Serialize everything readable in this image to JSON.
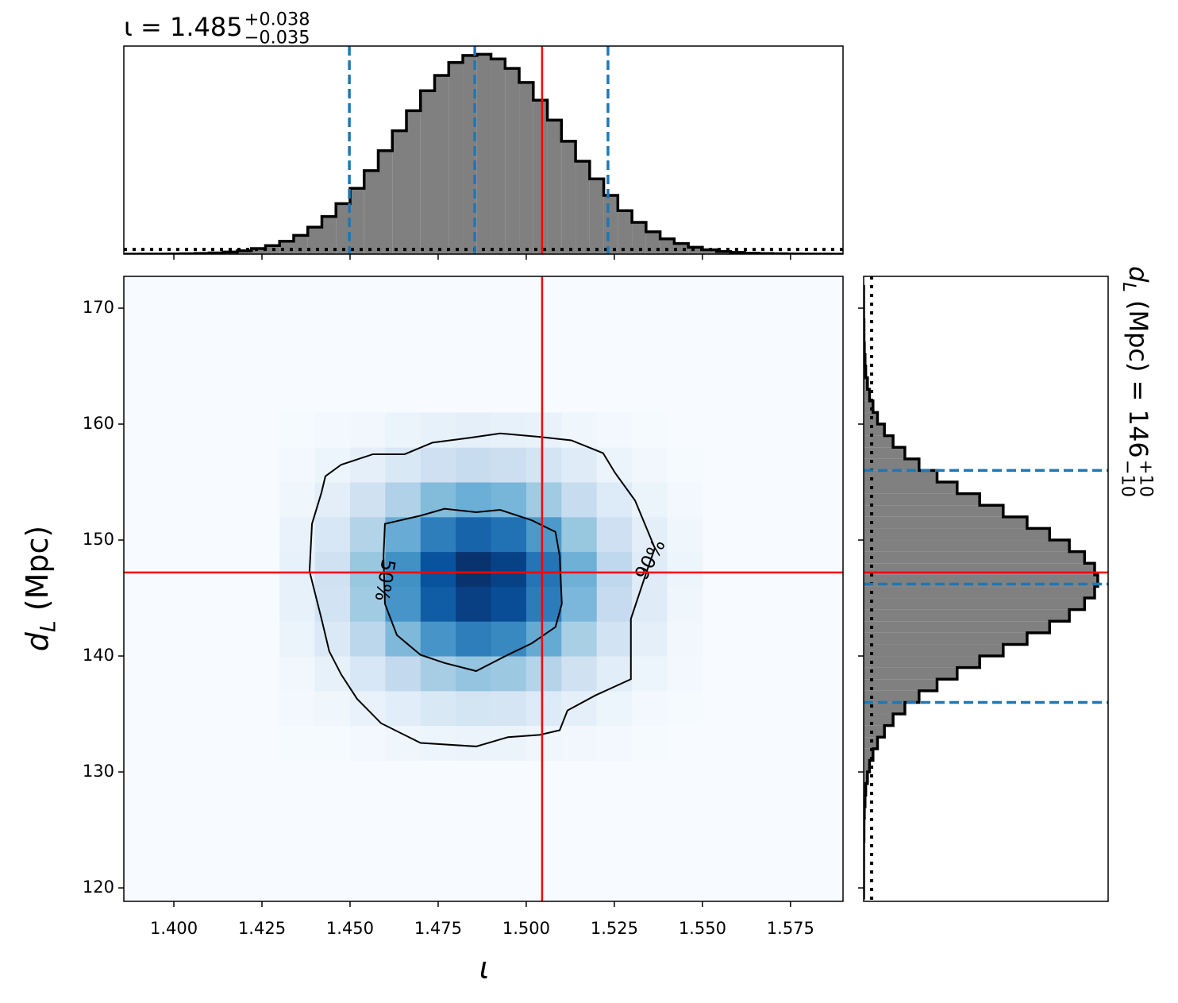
{
  "chart_data": [
    {
      "type": "histogram",
      "orientation": "vertical",
      "title": {
        "main": "ι = 1.485",
        "upper": "+0.038",
        "lower": "−0.035"
      },
      "bins": [
        1.386,
        1.39,
        1.394,
        1.398,
        1.402,
        1.406,
        1.41,
        1.414,
        1.418,
        1.422,
        1.426,
        1.43,
        1.434,
        1.438,
        1.442,
        1.446,
        1.45,
        1.454,
        1.458,
        1.462,
        1.466,
        1.47,
        1.474,
        1.478,
        1.482,
        1.486,
        1.49,
        1.494,
        1.498,
        1.502,
        1.506,
        1.51,
        1.514,
        1.518,
        1.522,
        1.526,
        1.53,
        1.534,
        1.538,
        1.542,
        1.546,
        1.55,
        1.554,
        1.558,
        1.562,
        1.566,
        1.57,
        1.574,
        1.578,
        1.582,
        1.586,
        1.59
      ],
      "values": [
        0,
        0.01,
        0.01,
        0.02,
        0.03,
        0.06,
        0.1,
        0.18,
        0.29,
        0.47,
        0.73,
        1.1,
        1.6,
        2.3,
        3.2,
        4.3,
        5.6,
        7.1,
        8.8,
        10.5,
        12.2,
        13.9,
        15.2,
        16.3,
        16.9,
        17.0,
        16.6,
        15.8,
        14.6,
        13.1,
        11.4,
        9.6,
        7.9,
        6.4,
        5.0,
        3.7,
        2.7,
        1.9,
        1.3,
        0.9,
        0.58,
        0.37,
        0.22,
        0.14,
        0.08,
        0.05,
        0.03,
        0.02,
        0.01,
        0.01,
        0
      ],
      "color": "#808080",
      "xlim": [
        1.3858,
        1.5899
      ],
      "ylim": [
        0,
        17.7
      ],
      "quantiles": [
        1.4498,
        1.4854,
        1.5232
      ],
      "quantile_color": "#1f77b4",
      "truth": 1.5045,
      "truth_color": "#ff0000",
      "prior": 0.4
    },
    {
      "type": "heatmap",
      "xlabel": "ι",
      "ylabel": {
        "main": "d",
        "sub": "L",
        "rest": " (Mpc)"
      },
      "xlim": [
        1.3858,
        1.5899
      ],
      "ylim": [
        118.84,
        172.74
      ],
      "xticks": [
        {
          "value": 1.4,
          "label": "1.400"
        },
        {
          "value": 1.425,
          "label": "1.425"
        },
        {
          "value": 1.45,
          "label": "1.450"
        },
        {
          "value": 1.475,
          "label": "1.475"
        },
        {
          "value": 1.5,
          "label": "1.500"
        },
        {
          "value": 1.525,
          "label": "1.525"
        },
        {
          "value": 1.55,
          "label": "1.550"
        },
        {
          "value": 1.575,
          "label": "1.575"
        }
      ],
      "yticks": [
        120,
        130,
        140,
        150,
        160,
        170
      ],
      "x_edges": [
        1.43,
        1.44,
        1.45,
        1.46,
        1.47,
        1.48,
        1.49,
        1.5,
        1.51,
        1.52,
        1.53,
        1.54,
        1.55
      ],
      "y_edges": [
        131,
        134,
        137,
        140,
        143,
        146,
        149,
        152,
        155,
        158,
        161
      ],
      "z": [
        [
          0.01,
          0.01,
          0.02,
          0.04,
          0.05,
          0.06,
          0.06,
          0.04,
          0.03,
          0.02,
          0.01,
          0.0
        ],
        [
          0.02,
          0.04,
          0.07,
          0.11,
          0.15,
          0.18,
          0.17,
          0.13,
          0.09,
          0.05,
          0.02,
          0.01
        ],
        [
          0.03,
          0.08,
          0.16,
          0.26,
          0.35,
          0.4,
          0.38,
          0.3,
          0.2,
          0.11,
          0.05,
          0.02
        ],
        [
          0.06,
          0.14,
          0.28,
          0.45,
          0.61,
          0.7,
          0.66,
          0.52,
          0.34,
          0.19,
          0.09,
          0.03
        ],
        [
          0.08,
          0.19,
          0.37,
          0.61,
          0.83,
          0.94,
          0.89,
          0.71,
          0.46,
          0.25,
          0.12,
          0.04
        ],
        [
          0.08,
          0.2,
          0.39,
          0.63,
          0.87,
          0.99,
          0.93,
          0.74,
          0.49,
          0.27,
          0.12,
          0.05
        ],
        [
          0.07,
          0.16,
          0.31,
          0.51,
          0.7,
          0.8,
          0.75,
          0.59,
          0.39,
          0.21,
          0.1,
          0.04
        ],
        [
          0.04,
          0.1,
          0.2,
          0.32,
          0.44,
          0.5,
          0.47,
          0.37,
          0.24,
          0.13,
          0.06,
          0.02
        ],
        [
          0.02,
          0.05,
          0.09,
          0.15,
          0.21,
          0.24,
          0.22,
          0.18,
          0.12,
          0.06,
          0.03,
          0.01
        ],
        [
          0.01,
          0.02,
          0.03,
          0.06,
          0.08,
          0.09,
          0.08,
          0.07,
          0.04,
          0.02,
          0.01,
          0.0
        ]
      ],
      "zlim": [
        0,
        1
      ],
      "colormap": [
        "#f7fbff",
        "#deebf7",
        "#c6dbef",
        "#9ecae1",
        "#6baed6",
        "#4292c6",
        "#2171b5",
        "#08519c",
        "#08306b"
      ],
      "contours": [
        {
          "label": "50%",
          "x": [
            1.4599,
            1.47,
            1.4768,
            1.4858,
            1.4926,
            1.5016,
            1.5083,
            1.5095,
            1.5101,
            1.5083,
            1.5016,
            1.4948,
            1.4858,
            1.4768,
            1.47,
            1.4633,
            1.4599,
            1.4595
          ],
          "y": [
            151.4,
            152.1,
            152.7,
            152.4,
            152.6,
            151.7,
            150.7,
            148.6,
            144.5,
            142.5,
            141.1,
            140.1,
            138.7,
            139.4,
            140.1,
            141.8,
            144.5,
            148.6
          ]
        },
        {
          "label": "90%",
          "x": [
            1.443,
            1.4475,
            1.4565,
            1.4655,
            1.4734,
            1.4836,
            1.4926,
            1.5038,
            1.5128,
            1.5218,
            1.5252,
            1.5309,
            1.5365,
            1.5342,
            1.5297,
            1.5297,
            1.5196,
            1.5117,
            1.5095,
            1.5038,
            1.4948,
            1.4858,
            1.47,
            1.4588,
            1.452,
            1.4475,
            1.4441,
            1.4419,
            1.4385,
            1.4392,
            1.4419
          ],
          "y": [
            155.5,
            156.5,
            157.4,
            157.4,
            158.4,
            158.8,
            159.2,
            158.9,
            158.6,
            157.5,
            155.8,
            153.4,
            149.3,
            147.3,
            143.2,
            138.0,
            136.6,
            135.3,
            133.6,
            133.2,
            133.0,
            132.2,
            132.5,
            134.2,
            136.3,
            138.4,
            140.4,
            143.2,
            147.3,
            151.4,
            154.1
          ]
        }
      ],
      "truth": [
        1.5045,
        147.2
      ],
      "truth_color": "#ff0000"
    },
    {
      "type": "histogram",
      "orientation": "horizontal",
      "title": {
        "main": "d",
        "sub": "L",
        "rest": " (Mpc) = 146",
        "upper": "+10",
        "lower": "−10"
      },
      "bins": [
        119,
        120,
        121,
        122,
        123,
        124,
        125,
        126,
        127,
        128,
        129,
        130,
        131,
        132,
        133,
        134,
        135,
        136,
        137,
        138,
        139,
        140,
        141,
        142,
        143,
        144,
        145,
        146,
        147,
        148,
        149,
        150,
        151,
        152,
        153,
        154,
        155,
        156,
        157,
        158,
        159,
        160,
        161,
        162,
        163,
        164,
        165,
        166,
        167,
        168,
        169,
        170,
        171,
        172
      ],
      "values": [
        0,
        0,
        0,
        0,
        0,
        0.0001,
        0.0001,
        0.0002,
        0.0004,
        0.0006,
        0.0011,
        0.0017,
        0.0027,
        0.004,
        0.006,
        0.0085,
        0.0119,
        0.016,
        0.0212,
        0.027,
        0.0335,
        0.0403,
        0.0472,
        0.0537,
        0.0594,
        0.0638,
        0.0667,
        0.0676,
        0.0667,
        0.0638,
        0.0594,
        0.0537,
        0.0472,
        0.0403,
        0.0335,
        0.027,
        0.0212,
        0.016,
        0.0119,
        0.0085,
        0.006,
        0.004,
        0.0027,
        0.0017,
        0.0011,
        0.0006,
        0.0004,
        0.0002,
        0.0001,
        0.0001,
        0,
        0,
        0
      ],
      "color": "#808080",
      "xlim": [
        0,
        0.0706
      ],
      "ylim": [
        118.84,
        172.74
      ],
      "quantiles": [
        136,
        146.2,
        156
      ],
      "quantile_color": "#1f77b4",
      "truth": 147.2,
      "truth_color": "#ff0000",
      "prior": 0.0023
    }
  ]
}
